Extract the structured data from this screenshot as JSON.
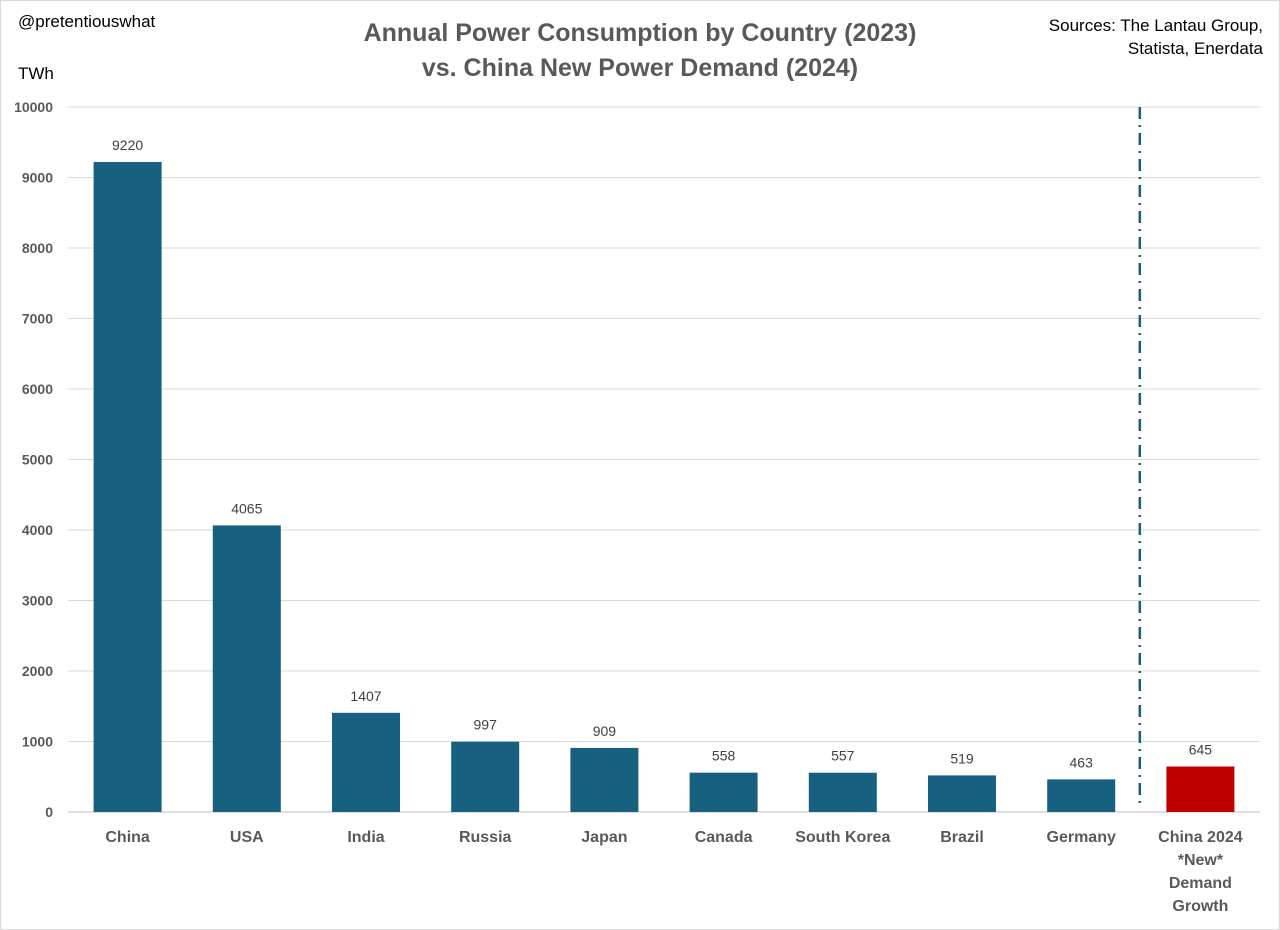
{
  "header": {
    "handle": "@pretentiouswhat",
    "title_line1": "Annual Power Consumption by Country  (2023)",
    "title_line2": "vs. China New Power Demand (2024)",
    "sources_line1": "Sources: The Lantau Group,",
    "sources_line2": "Statista, Enerdata"
  },
  "chart_data": {
    "type": "bar",
    "title": "Annual Power Consumption by Country  (2023) vs. China New Power Demand (2024)",
    "ylabel": "TWh",
    "xlabel": "",
    "ylim": [
      0,
      10000
    ],
    "yticks": [
      0,
      1000,
      2000,
      3000,
      4000,
      5000,
      6000,
      7000,
      8000,
      9000,
      10000
    ],
    "grid": true,
    "categories": [
      [
        "China"
      ],
      [
        "USA"
      ],
      [
        "India"
      ],
      [
        "Russia"
      ],
      [
        "Japan"
      ],
      [
        "Canada"
      ],
      [
        "South Korea"
      ],
      [
        "Brazil"
      ],
      [
        "Germany"
      ],
      [
        "China 2024",
        "*New*",
        "Demand",
        "Growth"
      ]
    ],
    "values": [
      9220,
      4065,
      1407,
      997,
      909,
      558,
      557,
      519,
      463,
      645
    ],
    "bar_colors": [
      "#17607f",
      "#17607f",
      "#17607f",
      "#17607f",
      "#17607f",
      "#17607f",
      "#17607f",
      "#17607f",
      "#17607f",
      "#c00000"
    ],
    "separator_color": "#17607f"
  }
}
